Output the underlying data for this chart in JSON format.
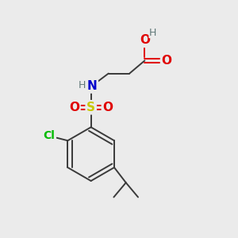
{
  "bg_color": "#ebebeb",
  "bond_color": "#3a3a3a",
  "colors": {
    "O": "#e00000",
    "N": "#0000cc",
    "S": "#c8c800",
    "Cl": "#00bb00",
    "H": "#607878",
    "C": "#3a3a3a"
  },
  "figsize": [
    3.0,
    3.0
  ],
  "dpi": 100
}
